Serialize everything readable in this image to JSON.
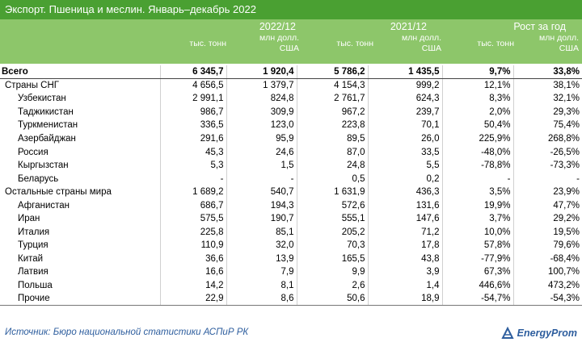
{
  "title": "Экспорт. Пшеница и меслин. Январь–декабрь 2022",
  "header": {
    "groups": [
      "2022/12",
      "2021/12",
      "Рост за год"
    ],
    "unit_tons": "тыс. тонн",
    "unit_usd_line1": "млн долл.",
    "unit_usd_line2": "США"
  },
  "rows": [
    {
      "name": "Всего",
      "kind": "total",
      "v": [
        "6 345,7",
        "1 920,4",
        "5 786,2",
        "1 435,5",
        "9,7%",
        "33,8%"
      ]
    },
    {
      "name": "Страны СНГ",
      "kind": "group",
      "v": [
        "4 656,5",
        "1 379,7",
        "4 154,3",
        "999,2",
        "12,1%",
        "38,1%"
      ]
    },
    {
      "name": "Узбекистан",
      "kind": "sub",
      "v": [
        "2 991,1",
        "824,8",
        "2 761,7",
        "624,3",
        "8,3%",
        "32,1%"
      ]
    },
    {
      "name": "Таджикистан",
      "kind": "sub",
      "v": [
        "986,7",
        "309,9",
        "967,2",
        "239,7",
        "2,0%",
        "29,3%"
      ]
    },
    {
      "name": "Туркменистан",
      "kind": "sub",
      "v": [
        "336,5",
        "123,0",
        "223,8",
        "70,1",
        "50,4%",
        "75,4%"
      ]
    },
    {
      "name": "Азербайджан",
      "kind": "sub",
      "v": [
        "291,6",
        "95,9",
        "89,5",
        "26,0",
        "225,9%",
        "268,8%"
      ]
    },
    {
      "name": "Россия",
      "kind": "sub",
      "v": [
        "45,3",
        "24,6",
        "87,0",
        "33,5",
        "-48,0%",
        "-26,5%"
      ]
    },
    {
      "name": "Кыргызстан",
      "kind": "sub",
      "v": [
        "5,3",
        "1,5",
        "24,8",
        "5,5",
        "-78,8%",
        "-73,3%"
      ]
    },
    {
      "name": "Беларусь",
      "kind": "sub",
      "v": [
        "-",
        "-",
        "0,5",
        "0,2",
        "-",
        "-"
      ]
    },
    {
      "name": "Остальные страны мира",
      "kind": "group",
      "v": [
        "1 689,2",
        "540,7",
        "1 631,9",
        "436,3",
        "3,5%",
        "23,9%"
      ]
    },
    {
      "name": "Афганистан",
      "kind": "sub",
      "v": [
        "686,7",
        "194,3",
        "572,6",
        "131,6",
        "19,9%",
        "47,7%"
      ]
    },
    {
      "name": "Иран",
      "kind": "sub",
      "v": [
        "575,5",
        "190,7",
        "555,1",
        "147,6",
        "3,7%",
        "29,2%"
      ]
    },
    {
      "name": "Италия",
      "kind": "sub",
      "v": [
        "225,8",
        "85,1",
        "205,2",
        "71,2",
        "10,0%",
        "19,5%"
      ]
    },
    {
      "name": "Турция",
      "kind": "sub",
      "v": [
        "110,9",
        "32,0",
        "70,3",
        "17,8",
        "57,8%",
        "79,6%"
      ]
    },
    {
      "name": "Китай",
      "kind": "sub",
      "v": [
        "36,6",
        "13,9",
        "165,5",
        "43,8",
        "-77,9%",
        "-68,4%"
      ]
    },
    {
      "name": "Латвия",
      "kind": "sub",
      "v": [
        "16,6",
        "7,9",
        "9,9",
        "3,9",
        "67,3%",
        "100,7%"
      ]
    },
    {
      "name": "Польша",
      "kind": "sub",
      "v": [
        "14,2",
        "8,1",
        "2,6",
        "1,4",
        "446,6%",
        "473,2%"
      ]
    },
    {
      "name": "Прочие",
      "kind": "sub",
      "v": [
        "22,9",
        "8,6",
        "50,6",
        "18,9",
        "-54,7%",
        "-54,3%"
      ]
    }
  ],
  "footer": {
    "source": "Источник: Бюро национальной статистики АСПиР РК",
    "brand": "EnergyProm"
  },
  "colors": {
    "title_bg": "#4aa032",
    "header_bg": "#8dc66a",
    "footer_text": "#2e5e9e"
  }
}
